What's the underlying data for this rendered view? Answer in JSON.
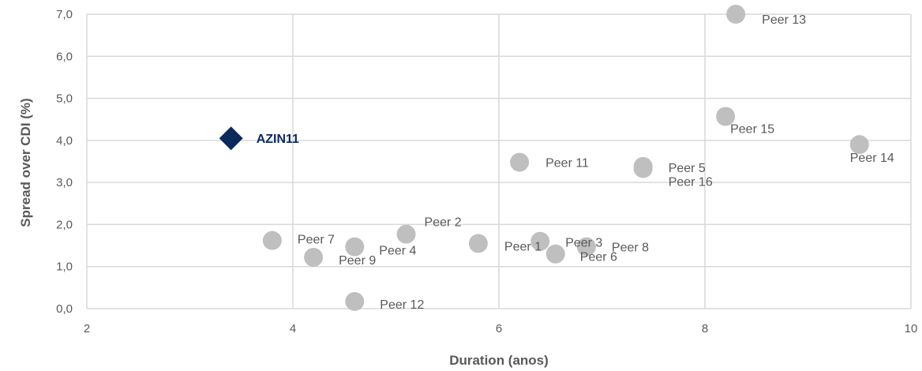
{
  "chart_data": {
    "type": "scatter",
    "title": "",
    "xlabel": "Duration (anos)",
    "ylabel": "Spread over CDI (%)",
    "xlim": [
      2,
      10
    ],
    "ylim": [
      0,
      7
    ],
    "x_ticks": [
      "2",
      "4",
      "6",
      "8",
      "10"
    ],
    "y_ticks": [
      "0,0",
      "1,0",
      "2,0",
      "3,0",
      "4,0",
      "5,0",
      "6,0",
      "7,0"
    ],
    "grid": true,
    "highlight": {
      "label": "AZIN11",
      "x": 3.4,
      "y": 4.05,
      "color": "#0b2a5b",
      "marker": "diamond"
    },
    "points_color": "#bfbfbf",
    "points": [
      {
        "label": "Peer 1",
        "x": 5.8,
        "y": 1.55
      },
      {
        "label": "Peer 2",
        "x": 5.1,
        "y": 1.77
      },
      {
        "label": "Peer 3",
        "x": 6.4,
        "y": 1.6
      },
      {
        "label": "Peer 4",
        "x": 4.6,
        "y": 1.47
      },
      {
        "label": "Peer 5",
        "x": 7.4,
        "y": 3.38
      },
      {
        "label": "Peer 6",
        "x": 6.55,
        "y": 1.3
      },
      {
        "label": "Peer 7",
        "x": 3.8,
        "y": 1.62
      },
      {
        "label": "Peer 8",
        "x": 6.85,
        "y": 1.47
      },
      {
        "label": "Peer 9",
        "x": 4.2,
        "y": 1.22
      },
      {
        "label": "Peer 11",
        "x": 6.2,
        "y": 3.48
      },
      {
        "label": "Peer 12",
        "x": 4.6,
        "y": 0.17
      },
      {
        "label": "Peer 13",
        "x": 8.3,
        "y": 7.0
      },
      {
        "label": "Peer 14",
        "x": 9.5,
        "y": 3.9
      },
      {
        "label": "Peer 15",
        "x": 8.2,
        "y": 4.57
      },
      {
        "label": "Peer 16",
        "x": 7.4,
        "y": 3.33
      }
    ]
  }
}
